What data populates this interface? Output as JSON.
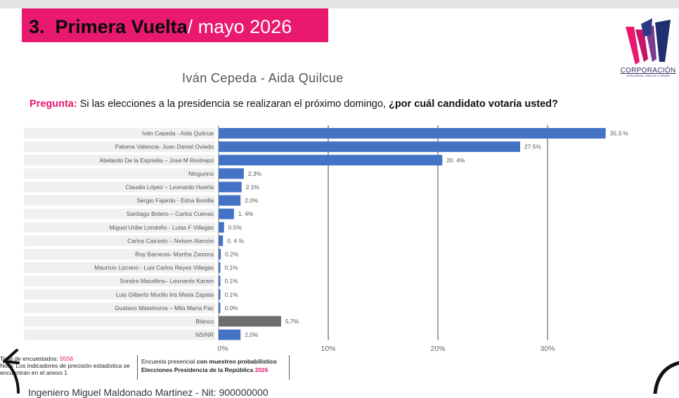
{
  "header": {
    "title_number": "3.",
    "title_bold": "Primera Vuelta",
    "title_rest": "/ mayo 2026",
    "logo_text": "CORPORACIÓN",
    "logo_subtext": "INTELIGENCIA - ANÁLISIS Y OPINIÓN"
  },
  "subtitle": "Iván Cepeda - Aida Quilcue",
  "question": {
    "label": "Pregunta:",
    "text": "Si las elecciones a la presidencia se realizaran el próximo domingo,",
    "bold": "¿por cuál candidato votaría usted?"
  },
  "chart_data": {
    "type": "bar",
    "orientation": "horizontal",
    "categories": [
      "Iván Cepeda - Aida Quilcue",
      "Paloma Valencia- Juan Daniel Oviedo",
      "Abelardo De la Espriella – José M Restrepo",
      "Ningunno",
      "Claudia López – Leonardo Huerta",
      "Sergio Fajardo - Edna Bonilla",
      "Santiago Botero – Carlos Cuevas",
      "Miguel Uribe Londoño - Luisa F Villegas",
      "Carlos Caicedo – Nelson Alarcón",
      "Roy Barreras- Martha Zamora",
      "Mauricio Lizcano -  Luis Carlos Reyes Villegas",
      "Sondra Macollins– Leonardo Karam",
      "Luis Gilberto Murillo Iris Maria Zapata",
      "Gustavo Matamoros – Mila María Paz",
      "Blanco",
      "NS/NR"
    ],
    "values": [
      35.3,
      27.5,
      20.4,
      2.3,
      2.1,
      2.0,
      1.4,
      0.5,
      0.4,
      0.2,
      0.1,
      0.1,
      0.1,
      0.0,
      5.7,
      2.0
    ],
    "data_labels": [
      "35,3.%",
      "27.5%",
      "20. 4%",
      "2,3%",
      "2.1%",
      "2.0%",
      "1. 4%",
      "0.5%",
      "0. 4 %",
      "0.2%",
      "0.1%",
      "0.1%",
      "0.1%",
      "0.0%",
      "5,7%",
      "2,0%"
    ],
    "bar_colors": [
      "#4472c4",
      "#4472c4",
      "#4472c4",
      "#4472c4",
      "#4472c4",
      "#4472c4",
      "#4472c4",
      "#4472c4",
      "#4472c4",
      "#4472c4",
      "#4472c4",
      "#4472c4",
      "#4472c4",
      "#4472c4",
      "#6d6d6d",
      "#4472c4"
    ],
    "x_ticks": [
      0,
      10,
      20,
      30
    ],
    "x_tick_labels": [
      "0%",
      "10%",
      "20%",
      "30%"
    ],
    "xlim": [
      0,
      38.2
    ],
    "grid": true,
    "title": "",
    "xlabel": "",
    "ylabel": ""
  },
  "footer": {
    "sample_label": "Total de encuestados:",
    "sample_value": "5558",
    "note_line1": "Nota: Los indicadores de precisión estadística se",
    "note_line2": "encuentran en el anexo 1",
    "method_plain": "Encuesta presencial",
    "method_bold": "con muestreo probabilístico",
    "election_text": "Elecciones Presidencia de la República",
    "election_year": "2026"
  },
  "bottom_text": "Ingeniero Miguel Maldonado Martinez - Nit: 900000000"
}
